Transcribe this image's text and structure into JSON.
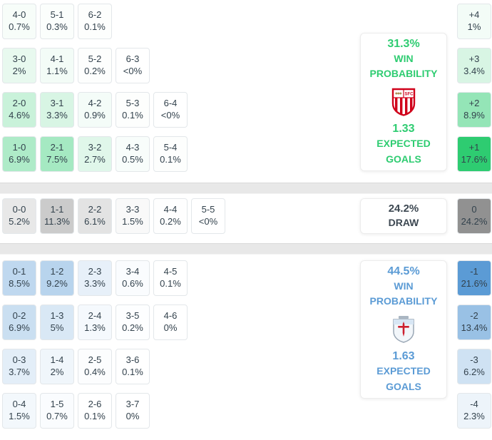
{
  "colors": {
    "home_accent": "#2ecc71",
    "away_accent": "#5b9bd5",
    "draw_text": "#3d4852",
    "cell_text": "#33424d",
    "cell_border": "#e3e7ea",
    "panel_border": "#ececec",
    "divider": "#e8e8e8",
    "home_rgb": "46,204,113",
    "draw_rgb": "145,145,145",
    "away_rgb": "91,155,213"
  },
  "chart_data": {
    "type": "heatmap",
    "sections": {
      "home": {
        "grid": [
          [
            {
              "score": "4-0",
              "pct": "0.7%"
            },
            {
              "score": "5-1",
              "pct": "0.3%"
            },
            {
              "score": "6-2",
              "pct": "0.1%"
            }
          ],
          [
            {
              "score": "3-0",
              "pct": "2%"
            },
            {
              "score": "4-1",
              "pct": "1.1%"
            },
            {
              "score": "5-2",
              "pct": "0.2%"
            },
            {
              "score": "6-3",
              "pct": "<0%"
            }
          ],
          [
            {
              "score": "2-0",
              "pct": "4.6%"
            },
            {
              "score": "3-1",
              "pct": "3.3%"
            },
            {
              "score": "4-2",
              "pct": "0.9%"
            },
            {
              "score": "5-3",
              "pct": "0.1%"
            },
            {
              "score": "6-4",
              "pct": "<0%"
            }
          ],
          [
            {
              "score": "1-0",
              "pct": "6.9%"
            },
            {
              "score": "2-1",
              "pct": "7.5%"
            },
            {
              "score": "3-2",
              "pct": "2.7%"
            },
            {
              "score": "4-3",
              "pct": "0.5%"
            },
            {
              "score": "5-4",
              "pct": "0.1%"
            }
          ]
        ],
        "diffs": [
          {
            "diff": "+4",
            "pct": "1%"
          },
          {
            "diff": "+3",
            "pct": "3.4%"
          },
          {
            "diff": "+2",
            "pct": "8.9%"
          },
          {
            "diff": "+1",
            "pct": "17.6%"
          }
        ],
        "panel": {
          "win_probability": "31.3%",
          "win_line1": "WIN",
          "win_line2": "PROBABILITY",
          "expected_goals": "1.33",
          "eg_line1": "EXPECTED",
          "eg_line2": "GOALS",
          "icon": "sevilla-crest"
        }
      },
      "draw": {
        "grid": [
          [
            {
              "score": "0-0",
              "pct": "5.2%"
            },
            {
              "score": "1-1",
              "pct": "11.3%"
            },
            {
              "score": "2-2",
              "pct": "6.1%"
            },
            {
              "score": "3-3",
              "pct": "1.5%"
            },
            {
              "score": "4-4",
              "pct": "0.2%"
            },
            {
              "score": "5-5",
              "pct": "<0%"
            }
          ]
        ],
        "diffs": [
          {
            "diff": "0",
            "pct": "24.2%"
          }
        ],
        "panel": {
          "probability": "24.2%",
          "label": "DRAW"
        }
      },
      "away": {
        "grid": [
          [
            {
              "score": "0-1",
              "pct": "8.5%"
            },
            {
              "score": "1-2",
              "pct": "9.2%"
            },
            {
              "score": "2-3",
              "pct": "3.3%"
            },
            {
              "score": "3-4",
              "pct": "0.6%"
            },
            {
              "score": "4-5",
              "pct": "0.1%"
            }
          ],
          [
            {
              "score": "0-2",
              "pct": "6.9%"
            },
            {
              "score": "1-3",
              "pct": "5%"
            },
            {
              "score": "2-4",
              "pct": "1.3%"
            },
            {
              "score": "3-5",
              "pct": "0.2%"
            },
            {
              "score": "4-6",
              "pct": "0%"
            }
          ],
          [
            {
              "score": "0-3",
              "pct": "3.7%"
            },
            {
              "score": "1-4",
              "pct": "2%"
            },
            {
              "score": "2-5",
              "pct": "0.4%"
            },
            {
              "score": "3-6",
              "pct": "0.1%"
            }
          ],
          [
            {
              "score": "0-4",
              "pct": "1.5%"
            },
            {
              "score": "1-5",
              "pct": "0.7%"
            },
            {
              "score": "2-6",
              "pct": "0.1%"
            },
            {
              "score": "3-7",
              "pct": "0%"
            }
          ]
        ],
        "diffs": [
          {
            "diff": "-1",
            "pct": "21.6%"
          },
          {
            "diff": "-2",
            "pct": "13.4%"
          },
          {
            "diff": "-3",
            "pct": "6.2%"
          },
          {
            "diff": "-4",
            "pct": "2.3%"
          }
        ],
        "panel": {
          "win_probability": "44.5%",
          "win_line1": "WIN",
          "win_line2": "PROBABILITY",
          "expected_goals": "1.63",
          "eg_line1": "EXPECTED",
          "eg_line2": "GOALS",
          "icon": "celta-crest"
        }
      }
    }
  }
}
